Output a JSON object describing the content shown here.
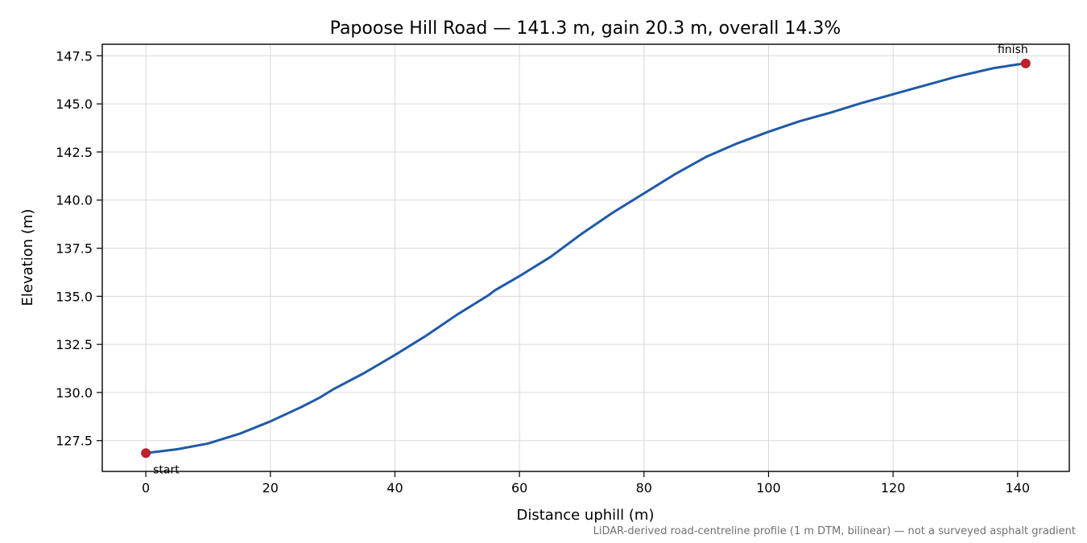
{
  "chart_data": {
    "type": "line",
    "title": "Papoose Hill Road — 141.3 m, gain 20.3 m, overall 14.3%",
    "xlabel": "Distance uphill (m)",
    "ylabel": "Elevation (m)",
    "xlim": [
      -7,
      148.3
    ],
    "ylim": [
      125.9,
      148.1
    ],
    "x_ticks": [
      0,
      20,
      40,
      60,
      80,
      100,
      120,
      140
    ],
    "y_ticks": [
      127.5,
      130.0,
      132.5,
      135.0,
      137.5,
      140.0,
      142.5,
      145.0,
      147.5
    ],
    "x_tick_labels": [
      "0",
      "20",
      "40",
      "60",
      "80",
      "100",
      "120",
      "140"
    ],
    "y_tick_labels": [
      "127.5",
      "130.0",
      "132.5",
      "135.0",
      "137.5",
      "140.0",
      "142.5",
      "145.0",
      "147.5"
    ],
    "grid": true,
    "series": [
      {
        "color": "#1f5aa8",
        "x": [
          0,
          5,
          10,
          15,
          20,
          25,
          28,
          30,
          35,
          40,
          45,
          50,
          55,
          56,
          60,
          65,
          70,
          75,
          80,
          85,
          90,
          95,
          100,
          105,
          110,
          115,
          120,
          125,
          130,
          134,
          136,
          140,
          141.3
        ],
        "y": [
          126.85,
          127.05,
          127.35,
          127.85,
          128.5,
          129.25,
          129.75,
          130.15,
          131.0,
          131.95,
          132.95,
          134.05,
          135.05,
          135.3,
          136.05,
          137.05,
          138.25,
          139.35,
          140.35,
          141.35,
          142.25,
          142.95,
          143.55,
          144.1,
          144.55,
          145.05,
          145.5,
          145.95,
          146.4,
          146.7,
          146.85,
          147.05,
          147.1
        ]
      }
    ],
    "markers": [
      {
        "x": 0,
        "y": 126.85,
        "label": "start",
        "color": "#c0202a"
      },
      {
        "x": 141.3,
        "y": 147.1,
        "label": "finish",
        "color": "#c0202a"
      }
    ],
    "footnote": "LiDAR-derived road-centreline profile (1 m DTM, bilinear) — not a surveyed asphalt gradient"
  }
}
